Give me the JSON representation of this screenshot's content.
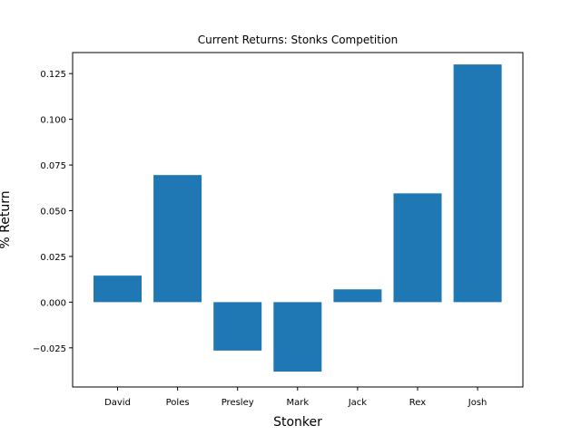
{
  "chart_data": {
    "type": "bar",
    "title": "Current Returns: Stonks Competition",
    "xlabel": "Stonker",
    "ylabel": "% Return",
    "categories": [
      "David",
      "Poles",
      "Presley",
      "Mark",
      "Jack",
      "Rex",
      "Josh"
    ],
    "values": [
      0.0145,
      0.0695,
      -0.0265,
      -0.038,
      0.007,
      0.0595,
      0.13
    ],
    "ylim": [
      -0.0464,
      0.1365
    ],
    "yticks": [
      -0.025,
      0.0,
      0.025,
      0.05,
      0.075,
      0.1,
      0.125
    ],
    "ytick_labels": [
      "−0.025",
      "0.000",
      "0.025",
      "0.050",
      "0.075",
      "0.100",
      "0.125"
    ],
    "bar_color": "#1f77b4",
    "grid": false,
    "legend": "none"
  }
}
